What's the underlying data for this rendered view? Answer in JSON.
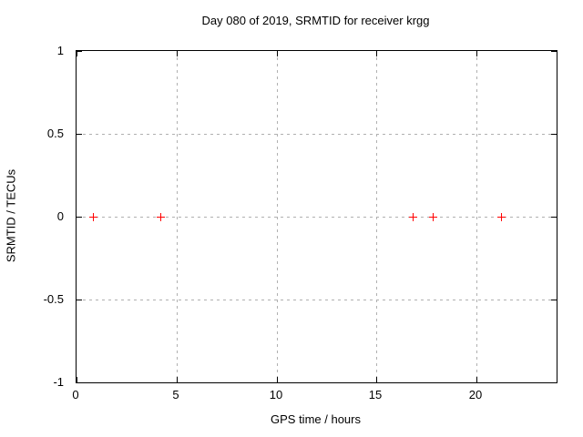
{
  "figure": {
    "title": "Day 080 of 2019, SRMTID for receiver krgg"
  },
  "chart_data": {
    "type": "scatter",
    "title": "Day 080 of 2019, SRMTID for receiver krgg",
    "xlabel": "GPS time / hours",
    "ylabel": "SRMTID / TECUs",
    "xlim": [
      0,
      24
    ],
    "ylim": [
      -1,
      1
    ],
    "grid": true,
    "legend": "none",
    "xticks": [
      {
        "value": 0,
        "label": "0"
      },
      {
        "value": 5,
        "label": "5"
      },
      {
        "value": 10,
        "label": "10"
      },
      {
        "value": 15,
        "label": "15"
      },
      {
        "value": 20,
        "label": "20"
      }
    ],
    "yticks": [
      {
        "value": 1,
        "label": "1"
      },
      {
        "value": 0.5,
        "label": "0.5"
      },
      {
        "value": 0,
        "label": "0"
      },
      {
        "value": -0.5,
        "label": "-0.5"
      },
      {
        "value": -1,
        "label": "-1"
      }
    ],
    "series": [
      {
        "name": "SRMTID",
        "marker": "plus",
        "color": "#ff0000",
        "points": [
          {
            "x": 0.8,
            "y": 0
          },
          {
            "x": 4.2,
            "y": 0
          },
          {
            "x": 16.8,
            "y": 0
          },
          {
            "x": 17.8,
            "y": 0
          },
          {
            "x": 21.2,
            "y": 0
          }
        ]
      }
    ]
  },
  "colors": {
    "background": "#ffffff",
    "axis": "#000000",
    "grid": "#b0b0b0",
    "marker": "#ff0000",
    "text": "#000000"
  }
}
